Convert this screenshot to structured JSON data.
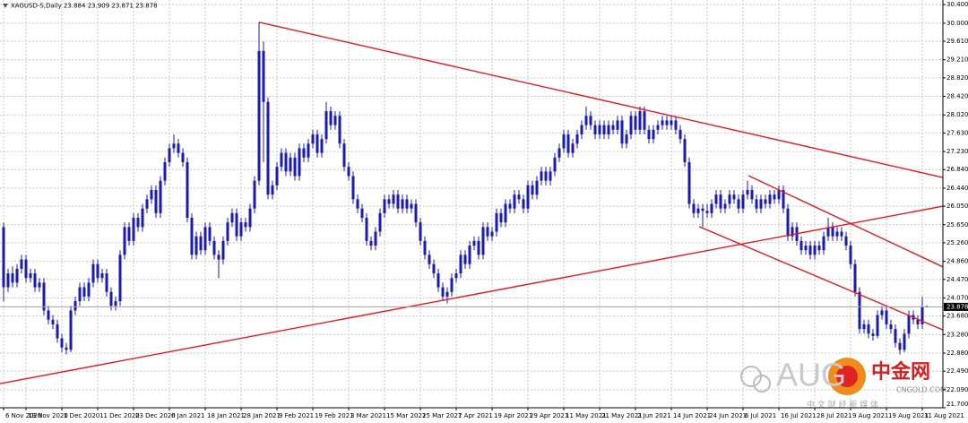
{
  "chart_data": {
    "type": "candlestick",
    "title": "XAGUSD-S,Daily 23.884 23.909 23.871 23.878",
    "up_color": "#1a1ab4",
    "down_color": "#1a1ab4",
    "trendline_color": "#e8191e",
    "grid": true,
    "xlim": [
      -0.8,
      209.6
    ],
    "ylim": [
      21.7,
      30.5
    ],
    "yticks": [
      {
        "value": 30.4,
        "label": "30.400"
      },
      {
        "value": 30.0,
        "label": "30.000"
      },
      {
        "value": 29.61,
        "label": "29.610"
      },
      {
        "value": 29.21,
        "label": "29.210"
      },
      {
        "value": 28.82,
        "label": "28.820"
      },
      {
        "value": 28.42,
        "label": "28.420"
      },
      {
        "value": 28.02,
        "label": "28.020"
      },
      {
        "value": 27.63,
        "label": "27.630"
      },
      {
        "value": 27.23,
        "label": "27.230"
      },
      {
        "value": 26.84,
        "label": "26.840"
      },
      {
        "value": 26.44,
        "label": "26.440"
      },
      {
        "value": 26.05,
        "label": "26.050"
      },
      {
        "value": 25.65,
        "label": "25.650"
      },
      {
        "value": 25.26,
        "label": "25.260"
      },
      {
        "value": 24.86,
        "label": "24.860"
      },
      {
        "value": 24.47,
        "label": "24.470"
      },
      {
        "value": 24.07,
        "label": "24.070"
      },
      {
        "value": 23.68,
        "label": "23.680"
      },
      {
        "value": 23.28,
        "label": "23.280"
      },
      {
        "value": 22.88,
        "label": "22.880"
      },
      {
        "value": 22.49,
        "label": "22.490"
      },
      {
        "value": 22.09,
        "label": "22.090"
      },
      {
        "value": 21.7,
        "label": "21.700"
      }
    ],
    "xticks": [
      {
        "value": 0,
        "label": "6 Nov 2020"
      },
      {
        "value": 5,
        "label": "19 Nov 2020"
      },
      {
        "value": 13,
        "label": "1 Dec 2020"
      },
      {
        "value": 21,
        "label": "11 Dec 2020"
      },
      {
        "value": 29,
        "label": "23 Dec 2020"
      },
      {
        "value": 37,
        "label": "6 Jan 2021"
      },
      {
        "value": 45,
        "label": "18 Jan 2021"
      },
      {
        "value": 53,
        "label": "28 Jan 2021"
      },
      {
        "value": 61,
        "label": "9 Feb 2021"
      },
      {
        "value": 69,
        "label": "19 Feb 2021"
      },
      {
        "value": 77,
        "label": "3 Mar 2021"
      },
      {
        "value": 85,
        "label": "15 Mar 2021"
      },
      {
        "value": 93,
        "label": "25 Mar 2021"
      },
      {
        "value": 101,
        "label": "7 Apr 2021"
      },
      {
        "value": 109,
        "label": "19 Apr 2021"
      },
      {
        "value": 117,
        "label": "29 Apr 2021"
      },
      {
        "value": 125,
        "label": "11 May 2021"
      },
      {
        "value": 133,
        "label": "21 May 2021"
      },
      {
        "value": 141,
        "label": "2 Jun 2021"
      },
      {
        "value": 149,
        "label": "14 Jun 2021"
      },
      {
        "value": 157,
        "label": "24 Jun 2021"
      },
      {
        "value": 165,
        "label": "6 Jul 2021"
      },
      {
        "value": 173,
        "label": "16 Jul 2021"
      },
      {
        "value": 181,
        "label": "28 Jul 2021"
      },
      {
        "value": 189,
        "label": "9 Aug 2021"
      },
      {
        "value": 197,
        "label": "19 Aug 2021"
      },
      {
        "value": 205,
        "label": "31 Aug 2021"
      }
    ],
    "last_price": {
      "value": 23.878,
      "label": "23.878"
    },
    "trendlines": [
      [
        57,
        30.02,
        209.6,
        26.67
      ],
      [
        -0.8,
        22.22,
        209.6,
        26.05
      ],
      [
        166.2,
        26.71,
        209.6,
        24.74
      ],
      [
        155.2,
        25.61,
        209.6,
        23.38
      ]
    ],
    "watermark": {
      "text": "AUG",
      "brand": "中金网",
      "site": "CNGOLD.COM",
      "tagline": "中 文 财 经 新 媒 体"
    },
    "candles": [
      [
        25.6,
        25.7,
        24.0,
        24.3
      ],
      [
        24.3,
        24.7,
        24.2,
        24.6
      ],
      [
        24.6,
        24.75,
        24.3,
        24.4
      ],
      [
        24.4,
        24.8,
        24.3,
        24.7
      ],
      [
        24.7,
        25.0,
        24.6,
        24.9
      ],
      [
        24.9,
        25.0,
        24.4,
        24.5
      ],
      [
        24.5,
        24.7,
        24.4,
        24.6
      ],
      [
        24.6,
        24.7,
        24.2,
        24.3
      ],
      [
        24.3,
        24.5,
        24.2,
        24.4
      ],
      [
        24.4,
        24.5,
        23.7,
        23.8
      ],
      [
        23.8,
        23.9,
        23.5,
        23.6
      ],
      [
        23.6,
        23.7,
        23.4,
        23.5
      ],
      [
        23.5,
        23.6,
        23.1,
        23.2
      ],
      [
        23.2,
        23.3,
        22.9,
        23.0
      ],
      [
        23.0,
        23.1,
        22.85,
        22.95
      ],
      [
        22.95,
        23.9,
        22.9,
        23.8
      ],
      [
        23.8,
        24.1,
        23.7,
        24.0
      ],
      [
        24.0,
        24.4,
        23.9,
        24.3
      ],
      [
        24.3,
        24.4,
        24.0,
        24.1
      ],
      [
        24.1,
        24.5,
        24.0,
        24.4
      ],
      [
        24.4,
        24.9,
        24.3,
        24.8
      ],
      [
        24.8,
        24.9,
        24.4,
        24.5
      ],
      [
        24.5,
        24.7,
        24.4,
        24.6
      ],
      [
        24.6,
        24.7,
        24.1,
        24.2
      ],
      [
        24.2,
        24.3,
        23.8,
        23.9
      ],
      [
        23.9,
        24.1,
        23.8,
        24.0
      ],
      [
        24.0,
        25.1,
        23.9,
        25.0
      ],
      [
        25.0,
        25.7,
        24.9,
        25.6
      ],
      [
        25.6,
        25.7,
        25.2,
        25.3
      ],
      [
        25.3,
        25.9,
        25.2,
        25.8
      ],
      [
        25.8,
        25.9,
        25.5,
        25.6
      ],
      [
        25.6,
        26.1,
        25.5,
        26.0
      ],
      [
        26.0,
        26.3,
        25.9,
        26.2
      ],
      [
        26.2,
        26.5,
        26.1,
        26.4
      ],
      [
        26.4,
        26.5,
        25.8,
        25.9
      ],
      [
        25.9,
        26.7,
        25.8,
        26.6
      ],
      [
        26.6,
        27.1,
        26.5,
        27.0
      ],
      [
        27.0,
        27.4,
        26.9,
        27.3
      ],
      [
        27.3,
        27.6,
        27.2,
        27.4
      ],
      [
        27.4,
        27.5,
        27.1,
        27.2
      ],
      [
        27.2,
        27.3,
        26.9,
        27.0
      ],
      [
        27.0,
        27.1,
        25.7,
        25.8
      ],
      [
        25.8,
        25.9,
        24.9,
        25.0
      ],
      [
        25.0,
        25.5,
        24.9,
        25.4
      ],
      [
        25.4,
        25.5,
        25.0,
        25.1
      ],
      [
        25.1,
        25.7,
        25.0,
        25.6
      ],
      [
        25.6,
        25.7,
        25.2,
        25.3
      ],
      [
        25.3,
        25.4,
        24.9,
        25.0
      ],
      [
        25.0,
        25.1,
        24.5,
        24.9
      ],
      [
        24.9,
        25.4,
        24.8,
        25.3
      ],
      [
        25.3,
        25.8,
        25.2,
        25.7
      ],
      [
        25.7,
        26.0,
        25.6,
        25.9
      ],
      [
        25.9,
        26.0,
        25.3,
        25.4
      ],
      [
        25.4,
        25.8,
        25.3,
        25.7
      ],
      [
        25.7,
        25.8,
        25.5,
        25.6
      ],
      [
        25.6,
        26.1,
        25.5,
        26.0
      ],
      [
        26.0,
        26.7,
        25.9,
        26.6
      ],
      [
        26.6,
        30.02,
        26.5,
        29.4
      ],
      [
        29.4,
        29.6,
        27.0,
        28.3
      ],
      [
        28.3,
        28.4,
        26.2,
        26.3
      ],
      [
        26.3,
        26.6,
        26.2,
        26.5
      ],
      [
        26.5,
        27.0,
        26.4,
        26.9
      ],
      [
        26.9,
        27.3,
        26.8,
        27.2
      ],
      [
        27.2,
        27.3,
        26.7,
        26.8
      ],
      [
        26.8,
        27.2,
        26.7,
        27.1
      ],
      [
        27.1,
        27.2,
        26.6,
        26.7
      ],
      [
        26.7,
        27.4,
        26.6,
        27.3
      ],
      [
        27.3,
        27.4,
        27.0,
        27.1
      ],
      [
        27.1,
        27.5,
        27.0,
        27.4
      ],
      [
        27.4,
        27.7,
        27.3,
        27.6
      ],
      [
        27.6,
        27.7,
        27.1,
        27.2
      ],
      [
        27.2,
        27.6,
        27.1,
        27.5
      ],
      [
        27.5,
        28.3,
        27.4,
        28.1
      ],
      [
        28.1,
        28.2,
        27.7,
        27.8
      ],
      [
        27.8,
        28.1,
        27.7,
        28.0
      ],
      [
        28.0,
        28.1,
        27.3,
        27.4
      ],
      [
        27.4,
        27.5,
        26.8,
        26.9
      ],
      [
        26.9,
        27.0,
        26.6,
        26.7
      ],
      [
        26.7,
        26.8,
        26.1,
        26.2
      ],
      [
        26.2,
        26.3,
        25.9,
        26.0
      ],
      [
        26.0,
        26.1,
        25.7,
        25.8
      ],
      [
        25.8,
        25.9,
        25.2,
        25.3
      ],
      [
        25.3,
        25.4,
        25.1,
        25.2
      ],
      [
        25.2,
        25.6,
        25.1,
        25.5
      ],
      [
        25.5,
        26.0,
        25.4,
        25.9
      ],
      [
        25.9,
        26.3,
        25.8,
        26.2
      ],
      [
        26.2,
        26.3,
        26.0,
        26.1
      ],
      [
        26.1,
        26.4,
        26.0,
        26.3
      ],
      [
        26.3,
        26.4,
        25.9,
        26.0
      ],
      [
        26.0,
        26.3,
        25.9,
        26.2
      ],
      [
        26.2,
        26.3,
        25.9,
        26.0
      ],
      [
        26.0,
        26.2,
        25.9,
        26.1
      ],
      [
        26.1,
        26.2,
        25.6,
        25.7
      ],
      [
        25.7,
        25.8,
        25.2,
        25.3
      ],
      [
        25.3,
        25.4,
        24.9,
        25.0
      ],
      [
        25.0,
        25.1,
        24.7,
        24.8
      ],
      [
        24.8,
        24.9,
        24.5,
        24.6
      ],
      [
        24.6,
        24.7,
        24.2,
        24.3
      ],
      [
        24.3,
        24.4,
        24.0,
        24.1
      ],
      [
        24.1,
        24.3,
        23.95,
        24.2
      ],
      [
        24.2,
        24.6,
        24.1,
        24.5
      ],
      [
        24.5,
        24.7,
        24.4,
        24.6
      ],
      [
        24.6,
        25.1,
        24.5,
        25.0
      ],
      [
        25.0,
        25.1,
        24.7,
        24.8
      ],
      [
        24.8,
        25.3,
        24.7,
        25.2
      ],
      [
        25.2,
        25.4,
        25.1,
        25.3
      ],
      [
        25.3,
        25.4,
        24.9,
        25.0
      ],
      [
        25.0,
        25.7,
        24.9,
        25.6
      ],
      [
        25.6,
        25.7,
        25.3,
        25.4
      ],
      [
        25.4,
        25.6,
        25.3,
        25.5
      ],
      [
        25.5,
        26.0,
        25.4,
        25.9
      ],
      [
        25.9,
        26.0,
        25.6,
        25.7
      ],
      [
        25.7,
        26.2,
        25.6,
        26.1
      ],
      [
        26.1,
        26.2,
        25.9,
        26.0
      ],
      [
        26.0,
        26.4,
        25.9,
        26.3
      ],
      [
        26.3,
        26.4,
        26.1,
        26.2
      ],
      [
        26.2,
        26.3,
        25.9,
        26.0
      ],
      [
        26.0,
        26.6,
        25.9,
        26.5
      ],
      [
        26.5,
        26.6,
        26.2,
        26.3
      ],
      [
        26.3,
        26.7,
        26.2,
        26.6
      ],
      [
        26.6,
        26.9,
        26.5,
        26.8
      ],
      [
        26.8,
        26.9,
        26.5,
        26.6
      ],
      [
        26.6,
        26.9,
        26.5,
        26.8
      ],
      [
        26.8,
        27.2,
        26.7,
        27.1
      ],
      [
        27.1,
        27.4,
        27.0,
        27.3
      ],
      [
        27.3,
        27.7,
        27.2,
        27.6
      ],
      [
        27.6,
        27.7,
        27.1,
        27.2
      ],
      [
        27.2,
        27.5,
        27.1,
        27.4
      ],
      [
        27.4,
        27.7,
        27.3,
        27.6
      ],
      [
        27.6,
        27.9,
        27.5,
        27.8
      ],
      [
        27.8,
        28.2,
        27.7,
        28.0
      ],
      [
        28.0,
        28.1,
        27.7,
        27.8
      ],
      [
        27.8,
        27.9,
        27.5,
        27.6
      ],
      [
        27.6,
        27.9,
        27.5,
        27.8
      ],
      [
        27.8,
        27.9,
        27.5,
        27.6
      ],
      [
        27.6,
        27.9,
        27.5,
        27.8
      ],
      [
        27.8,
        27.9,
        27.6,
        27.7
      ],
      [
        27.7,
        28.0,
        27.6,
        27.9
      ],
      [
        27.9,
        28.0,
        27.3,
        27.4
      ],
      [
        27.4,
        27.7,
        27.3,
        27.6
      ],
      [
        27.6,
        28.1,
        27.5,
        28.0
      ],
      [
        28.0,
        28.1,
        27.6,
        27.7
      ],
      [
        27.7,
        28.2,
        27.6,
        28.1
      ],
      [
        28.1,
        28.2,
        27.6,
        27.7
      ],
      [
        27.7,
        27.8,
        27.4,
        27.5
      ],
      [
        27.5,
        27.8,
        27.4,
        27.7
      ],
      [
        27.7,
        27.9,
        27.6,
        27.8
      ],
      [
        27.8,
        28.0,
        27.7,
        27.9
      ],
      [
        27.9,
        28.0,
        27.7,
        27.8
      ],
      [
        27.8,
        28.0,
        27.7,
        27.9
      ],
      [
        27.9,
        28.0,
        27.6,
        27.7
      ],
      [
        27.7,
        27.8,
        27.4,
        27.5
      ],
      [
        27.5,
        27.6,
        26.9,
        27.0
      ],
      [
        27.0,
        27.1,
        26.0,
        26.1
      ],
      [
        26.1,
        26.2,
        25.8,
        25.9
      ],
      [
        25.9,
        26.1,
        25.8,
        26.0
      ],
      [
        26.0,
        26.1,
        25.6,
        25.95
      ],
      [
        25.95,
        26.1,
        25.8,
        25.9
      ],
      [
        25.9,
        26.2,
        25.8,
        26.1
      ],
      [
        26.1,
        26.4,
        26.0,
        26.3
      ],
      [
        26.3,
        26.4,
        25.9,
        26.0
      ],
      [
        26.0,
        26.2,
        25.9,
        26.1
      ],
      [
        26.1,
        26.4,
        26.0,
        26.3
      ],
      [
        26.3,
        26.4,
        26.1,
        26.2
      ],
      [
        26.2,
        26.3,
        25.9,
        26.0
      ],
      [
        26.0,
        26.4,
        25.9,
        26.3
      ],
      [
        26.3,
        26.6,
        26.2,
        26.4
      ],
      [
        26.4,
        26.5,
        26.1,
        26.2
      ],
      [
        26.2,
        26.3,
        25.9,
        26.0
      ],
      [
        26.0,
        26.3,
        25.9,
        26.2
      ],
      [
        26.2,
        26.3,
        26.0,
        26.1
      ],
      [
        26.1,
        26.4,
        26.0,
        26.3
      ],
      [
        26.3,
        26.4,
        26.1,
        26.2
      ],
      [
        26.2,
        26.5,
        26.1,
        26.4
      ],
      [
        26.4,
        26.5,
        25.9,
        26.0
      ],
      [
        26.0,
        26.1,
        25.3,
        25.4
      ],
      [
        25.4,
        25.7,
        25.3,
        25.6
      ],
      [
        25.6,
        25.7,
        25.2,
        25.3
      ],
      [
        25.3,
        25.4,
        25.0,
        25.1
      ],
      [
        25.1,
        25.3,
        25.0,
        25.2
      ],
      [
        25.2,
        25.3,
        24.9,
        25.0
      ],
      [
        25.0,
        25.3,
        24.9,
        25.2
      ],
      [
        25.2,
        25.3,
        25.0,
        25.1
      ],
      [
        25.1,
        25.5,
        25.0,
        25.4
      ],
      [
        25.4,
        25.8,
        25.3,
        25.6
      ],
      [
        25.6,
        25.7,
        25.3,
        25.4
      ],
      [
        25.4,
        25.6,
        25.3,
        25.5
      ],
      [
        25.5,
        25.6,
        25.3,
        25.4
      ],
      [
        25.4,
        25.5,
        25.1,
        25.2
      ],
      [
        25.2,
        25.3,
        24.7,
        24.8
      ],
      [
        24.8,
        24.9,
        24.1,
        24.2
      ],
      [
        24.2,
        24.3,
        23.3,
        23.4
      ],
      [
        23.4,
        23.6,
        23.3,
        23.5
      ],
      [
        23.5,
        23.6,
        23.2,
        23.3
      ],
      [
        23.3,
        23.4,
        23.15,
        23.25
      ],
      [
        23.25,
        23.8,
        23.2,
        23.7
      ],
      [
        23.7,
        23.9,
        23.6,
        23.8
      ],
      [
        23.8,
        23.9,
        23.4,
        23.5
      ],
      [
        23.5,
        23.6,
        23.3,
        23.4
      ],
      [
        23.4,
        23.5,
        23.0,
        23.1
      ],
      [
        23.1,
        23.2,
        22.85,
        22.95
      ],
      [
        22.95,
        23.4,
        22.9,
        23.3
      ],
      [
        23.3,
        23.8,
        23.2,
        23.7
      ],
      [
        23.7,
        23.8,
        23.5,
        23.6
      ],
      [
        23.6,
        23.7,
        23.4,
        23.5
      ],
      [
        23.5,
        24.1,
        23.4,
        23.88
      ],
      [
        23.884,
        23.909,
        23.871,
        23.878
      ]
    ]
  }
}
